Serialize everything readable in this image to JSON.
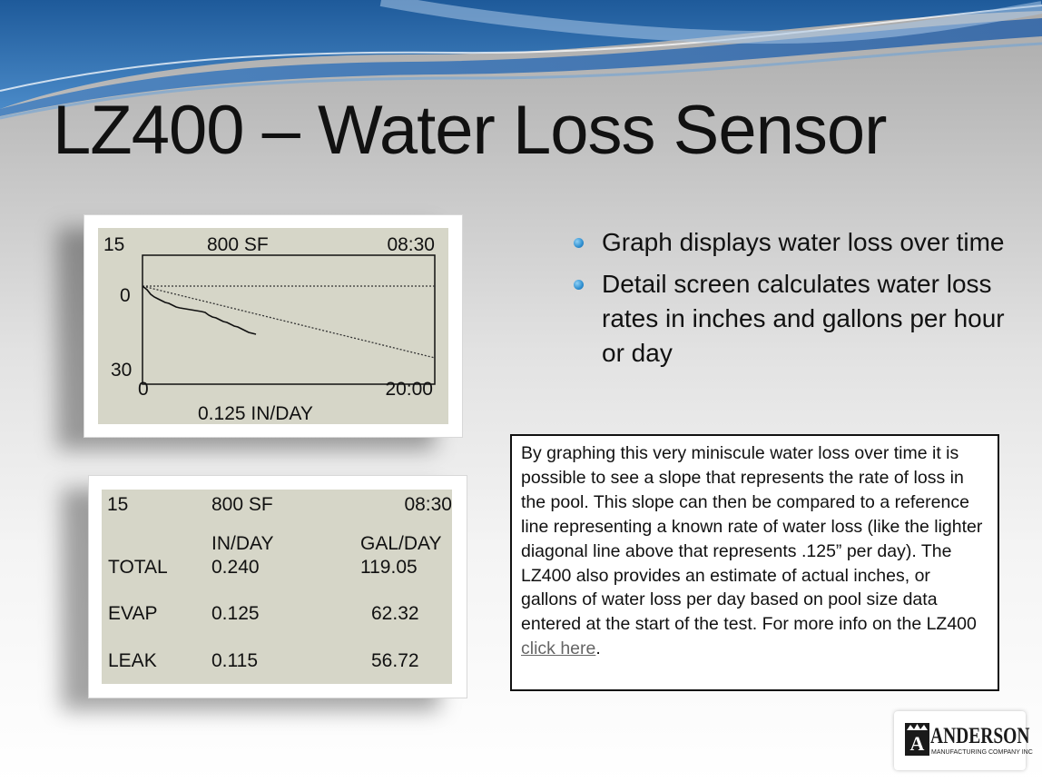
{
  "title": "LZ400 – Water Loss Sensor",
  "graph_screen": {
    "top_left": "15",
    "top_center": "800 SF",
    "top_right": "08:30",
    "y_top": "0",
    "y_bottom": "30",
    "x_start": "0",
    "x_end": "20:00",
    "rate": "0.125 IN/DAY"
  },
  "detail_screen": {
    "header": [
      "15",
      "800 SF",
      "08:30"
    ],
    "col_in": "IN/DAY",
    "col_gal": "GAL/DAY",
    "rows": [
      {
        "label": "TOTAL",
        "in": "0.240",
        "gal": "119.05"
      },
      {
        "label": "EVAP",
        "in": "0.125",
        "gal": "62.32"
      },
      {
        "label": "LEAK",
        "in": "0.115",
        "gal": "56.72"
      }
    ]
  },
  "bullets": [
    "Graph displays water loss over time",
    "Detail screen calculates water loss rates in inches and gallons per hour or day"
  ],
  "info": {
    "text": "By graphing this very miniscule water loss over time it is possible to see a slope that represents the rate of loss in the pool.  This slope can then be compared to a reference line representing a known rate of water loss (like the lighter diagonal line above that represents .125” per day).  The LZ400 also provides an estimate of actual inches, or gallons of water loss per day based on pool size data entered at the start of the test.  For more info on the LZ400 ",
    "link": "click here",
    "tail": "."
  },
  "logo": {
    "letter": "A",
    "name": "ANDERSON",
    "sub": "MANUFACTURING COMPANY INC"
  },
  "colors": {
    "accent_blue": "#2f7fc8",
    "lcd_background": "#d6d6c8"
  }
}
